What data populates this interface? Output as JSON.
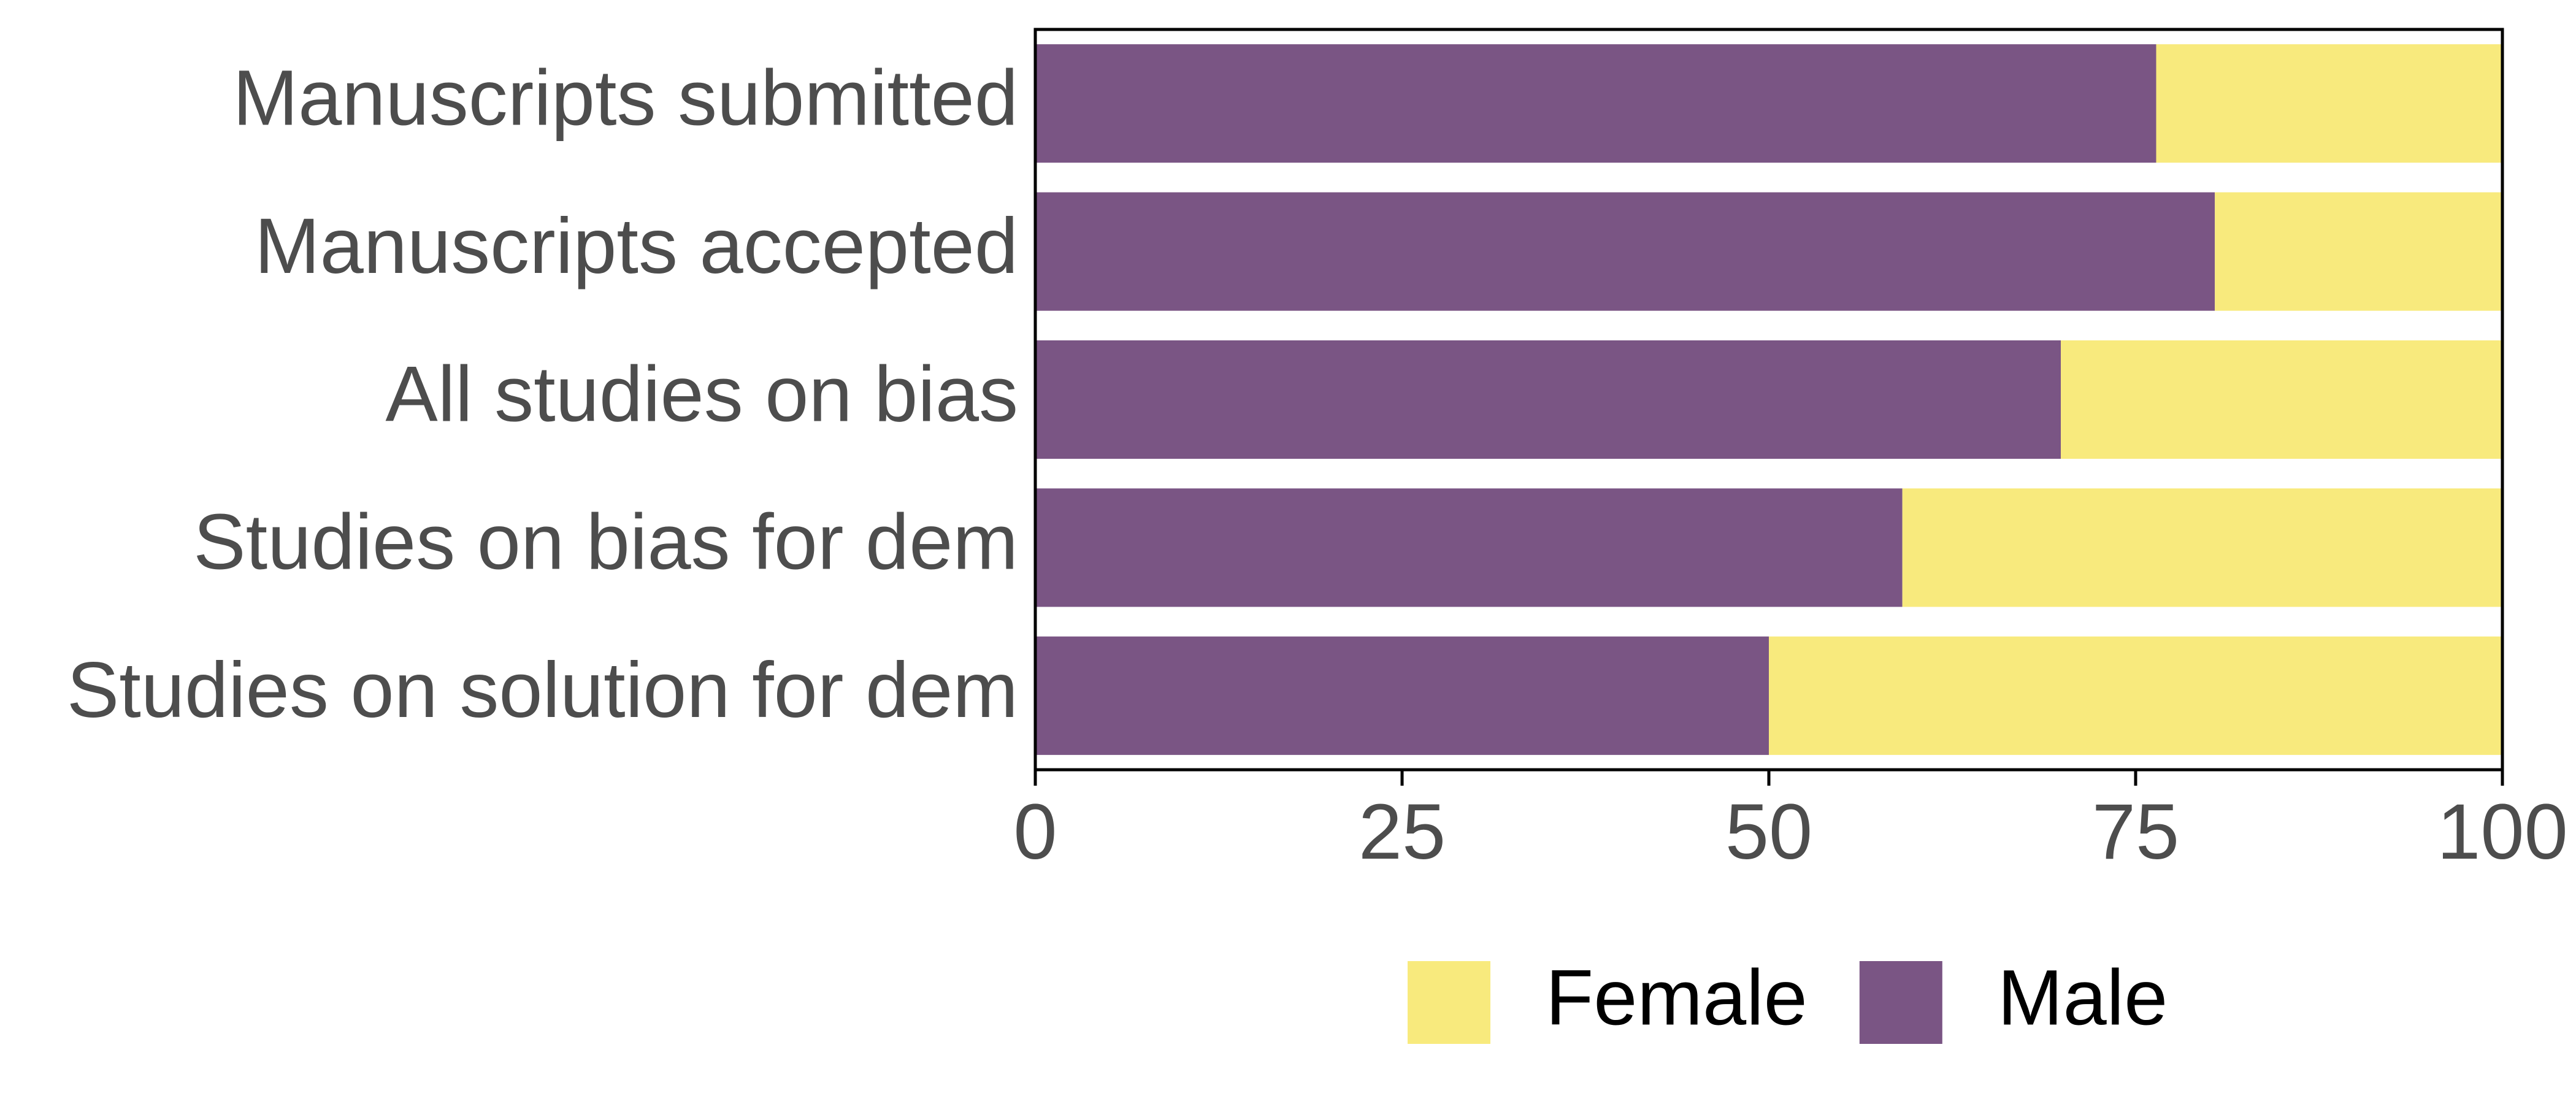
{
  "chart_data": {
    "type": "bar",
    "orientation": "horizontal",
    "stacked": true,
    "title": "",
    "xlabel": "",
    "ylabel": "",
    "categories": [
      "Manuscripts submitted",
      "Manuscripts accepted",
      "All studies on bias",
      "Studies on bias for dem",
      "Studies on solution for dem"
    ],
    "series": [
      {
        "name": "Male",
        "color": "#7a5584",
        "values": [
          76.4,
          80.4,
          69.9,
          59.1,
          50.0
        ]
      },
      {
        "name": "Female",
        "color": "#f8ea7d",
        "values": [
          23.6,
          19.6,
          30.1,
          40.9,
          50.0
        ]
      }
    ],
    "xlim": [
      0,
      100
    ],
    "xticks": [
      0,
      25,
      50,
      75,
      100
    ],
    "grid": false,
    "legend": {
      "position": "bottom",
      "items": [
        {
          "label": "Female",
          "color": "#f8ea7d"
        },
        {
          "label": "Male",
          "color": "#7a5584"
        }
      ]
    }
  }
}
